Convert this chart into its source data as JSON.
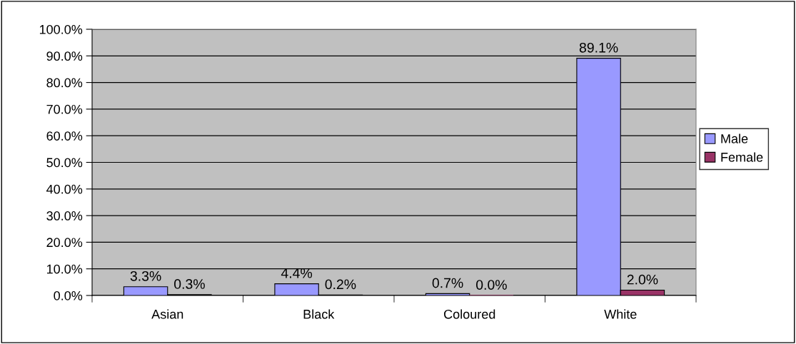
{
  "chart_data": {
    "type": "bar",
    "categories": [
      "Asian",
      "Black",
      "Coloured",
      "White"
    ],
    "series": [
      {
        "name": "Male",
        "color": "#9999ff",
        "values": [
          3.3,
          4.4,
          0.7,
          89.1
        ],
        "value_labels": [
          "3.3%",
          "4.4%",
          "0.7%",
          "89.1%"
        ]
      },
      {
        "name": "Female",
        "color": "#993366",
        "values": [
          0.3,
          0.2,
          0.0,
          2.0
        ],
        "value_labels": [
          "0.3%",
          "0.2%",
          "0.0%",
          "2.0%"
        ]
      }
    ],
    "ylim": [
      0,
      100
    ],
    "yticks": [
      {
        "value": 0,
        "label": "0.0%"
      },
      {
        "value": 10,
        "label": "10.0%"
      },
      {
        "value": 20,
        "label": "20.0%"
      },
      {
        "value": 30,
        "label": "30.0%"
      },
      {
        "value": 40,
        "label": "40.0%"
      },
      {
        "value": 50,
        "label": "50.0%"
      },
      {
        "value": 60,
        "label": "60.0%"
      },
      {
        "value": 70,
        "label": "70.0%"
      },
      {
        "value": 80,
        "label": "80.0%"
      },
      {
        "value": 90,
        "label": "90.0%"
      },
      {
        "value": 100,
        "label": "100.0%"
      }
    ],
    "grid": "y",
    "legend": "right"
  }
}
